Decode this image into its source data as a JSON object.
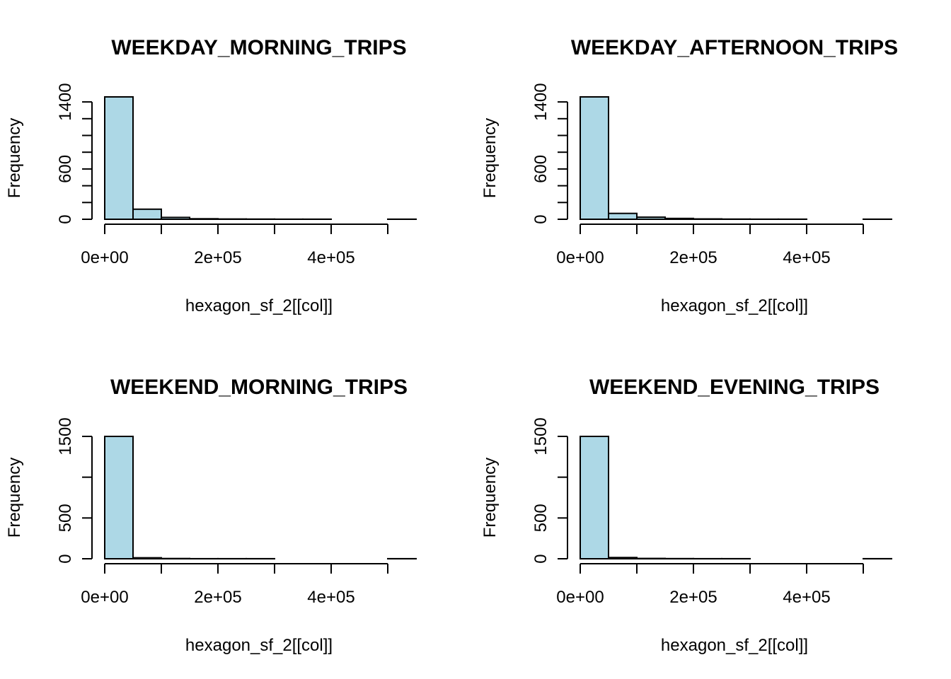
{
  "chart_data": [
    {
      "type": "bar",
      "title": "WEEKDAY_MORNING_TRIPS",
      "xlabel": "hexagon_sf_2[[col]]",
      "ylabel": "Frequency",
      "bar_color": "#add8e6",
      "bin_edges": [
        0,
        50000,
        100000,
        150000,
        200000,
        250000,
        300000,
        350000,
        400000,
        450000,
        500000,
        550000
      ],
      "values": [
        1460,
        120,
        22,
        6,
        3,
        2,
        1,
        1,
        0,
        0,
        1
      ],
      "xlim": [
        0,
        550000
      ],
      "ylim": [
        0,
        1460
      ],
      "x_ticks": [
        0,
        100000,
        200000,
        300000,
        400000,
        500000
      ],
      "x_tick_labels": [
        "0e+00",
        "",
        "2e+05",
        "",
        "4e+05",
        ""
      ],
      "y_ticks": [
        0,
        200,
        400,
        600,
        800,
        1000,
        1200,
        1400
      ],
      "y_tick_labels": [
        "0",
        "",
        "",
        "600",
        "",
        "",
        "",
        "1400"
      ]
    },
    {
      "type": "bar",
      "title": "WEEKDAY_AFTERNOON_TRIPS",
      "xlabel": "hexagon_sf_2[[col]]",
      "ylabel": "Frequency",
      "bar_color": "#add8e6",
      "bin_edges": [
        0,
        50000,
        100000,
        150000,
        200000,
        250000,
        300000,
        350000,
        400000,
        450000,
        500000,
        550000
      ],
      "values": [
        1460,
        70,
        25,
        10,
        4,
        2,
        1,
        1,
        0,
        0,
        1
      ],
      "xlim": [
        0,
        550000
      ],
      "ylim": [
        0,
        1460
      ],
      "x_ticks": [
        0,
        100000,
        200000,
        300000,
        400000,
        500000
      ],
      "x_tick_labels": [
        "0e+00",
        "",
        "2e+05",
        "",
        "4e+05",
        ""
      ],
      "y_ticks": [
        0,
        200,
        400,
        600,
        800,
        1000,
        1200,
        1400
      ],
      "y_tick_labels": [
        "0",
        "",
        "",
        "600",
        "",
        "",
        "",
        "1400"
      ]
    },
    {
      "type": "bar",
      "title": "WEEKEND_MORNING_TRIPS",
      "xlabel": "hexagon_sf_2[[col]]",
      "ylabel": "Frequency",
      "bar_color": "#add8e6",
      "bin_edges": [
        0,
        50000,
        100000,
        150000,
        200000,
        250000,
        300000,
        350000,
        400000,
        450000,
        500000,
        550000
      ],
      "values": [
        1500,
        12,
        3,
        1,
        1,
        1,
        0,
        0,
        0,
        0,
        1
      ],
      "xlim": [
        0,
        550000
      ],
      "ylim": [
        0,
        1500
      ],
      "x_ticks": [
        0,
        100000,
        200000,
        300000,
        400000,
        500000
      ],
      "x_tick_labels": [
        "0e+00",
        "",
        "2e+05",
        "",
        "4e+05",
        ""
      ],
      "y_ticks": [
        0,
        500,
        1000,
        1500
      ],
      "y_tick_labels": [
        "0",
        "500",
        "",
        "1500"
      ]
    },
    {
      "type": "bar",
      "title": "WEEKEND_EVENING_TRIPS",
      "xlabel": "hexagon_sf_2[[col]]",
      "ylabel": "Frequency",
      "bar_color": "#add8e6",
      "bin_edges": [
        0,
        50000,
        100000,
        150000,
        200000,
        250000,
        300000,
        350000,
        400000,
        450000,
        500000,
        550000
      ],
      "values": [
        1500,
        15,
        4,
        2,
        1,
        1,
        0,
        0,
        0,
        0,
        1
      ],
      "xlim": [
        0,
        550000
      ],
      "ylim": [
        0,
        1500
      ],
      "x_ticks": [
        0,
        100000,
        200000,
        300000,
        400000,
        500000
      ],
      "x_tick_labels": [
        "0e+00",
        "",
        "2e+05",
        "",
        "4e+05",
        ""
      ],
      "y_ticks": [
        0,
        500,
        1000,
        1500
      ],
      "y_tick_labels": [
        "0",
        "500",
        "",
        "1500"
      ]
    }
  ]
}
